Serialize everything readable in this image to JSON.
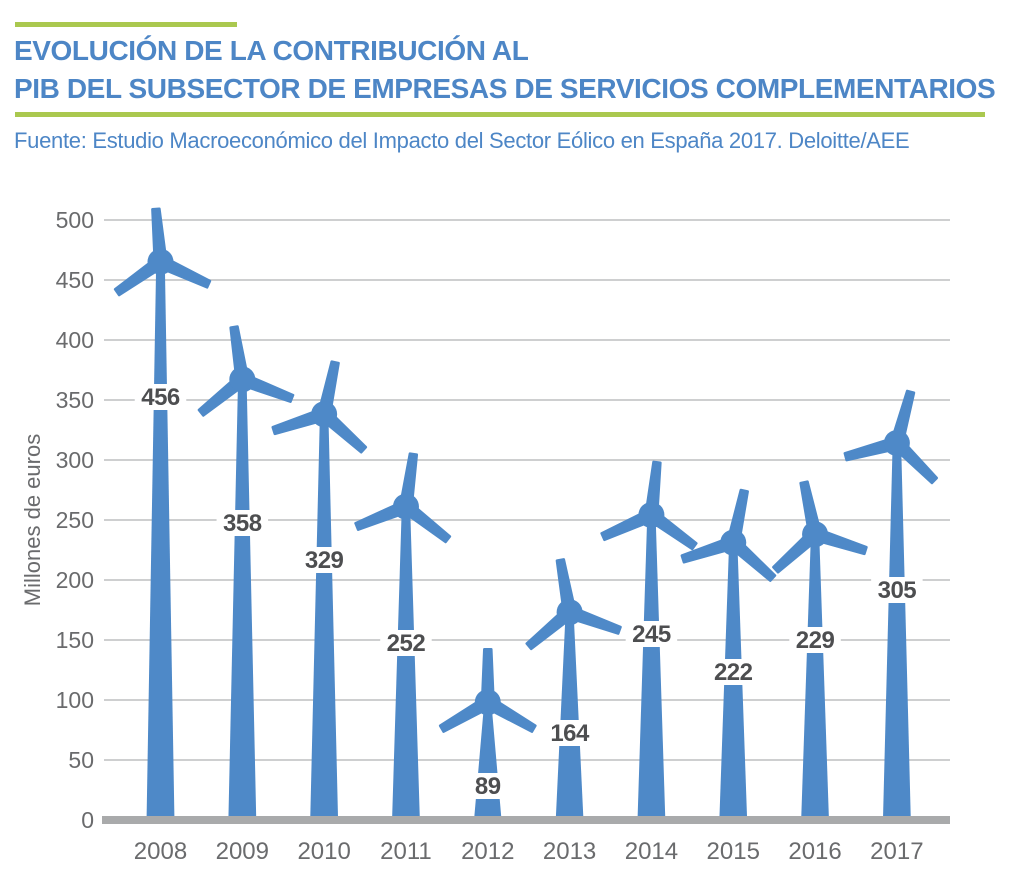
{
  "header": {
    "title_line1": "EVOLUCIÓN DE LA CONTRIBUCIÓN AL",
    "title_line2": "PIB DEL SUBSECTOR DE EMPRESAS DE SERVICIOS COMPLEMENTARIOS",
    "source": "Fuente: Estudio Macroeconómico del Impacto del Sector Eólico en España 2017. Deloitte/AEE"
  },
  "colors": {
    "accent_green": "#aac84f",
    "title_blue": "#4d86c6",
    "turbine_blue": "#4e89c8",
    "gridline_gray": "#c7c8c9",
    "axis_gray": "#a9aaab",
    "tick_gray": "#6a6b6d",
    "value_label_gray": "#4d4e50",
    "background": "#ffffff"
  },
  "chart_data": {
    "type": "bar",
    "pictogram": "wind-turbine",
    "title": "EVOLUCIÓN DE LA CONTRIBUCIÓN AL PIB DEL SUBSECTOR DE EMPRESAS DE SERVICIOS COMPLEMENTARIOS",
    "source": "Fuente: Estudio Macroeconómico del Impacto del Sector Eólico en España 2017. Deloitte/AEE",
    "categories": [
      "2008",
      "2009",
      "2010",
      "2011",
      "2012",
      "2013",
      "2014",
      "2015",
      "2016",
      "2017"
    ],
    "values": [
      456,
      358,
      329,
      252,
      89,
      164,
      245,
      222,
      229,
      305
    ],
    "xlabel": "",
    "ylabel": "Millones de euros",
    "ylim": [
      0,
      500
    ],
    "yticks": [
      0,
      50,
      100,
      150,
      200,
      250,
      300,
      350,
      400,
      450,
      500
    ],
    "grid": true,
    "legend": false,
    "value_labels_shown": true
  }
}
